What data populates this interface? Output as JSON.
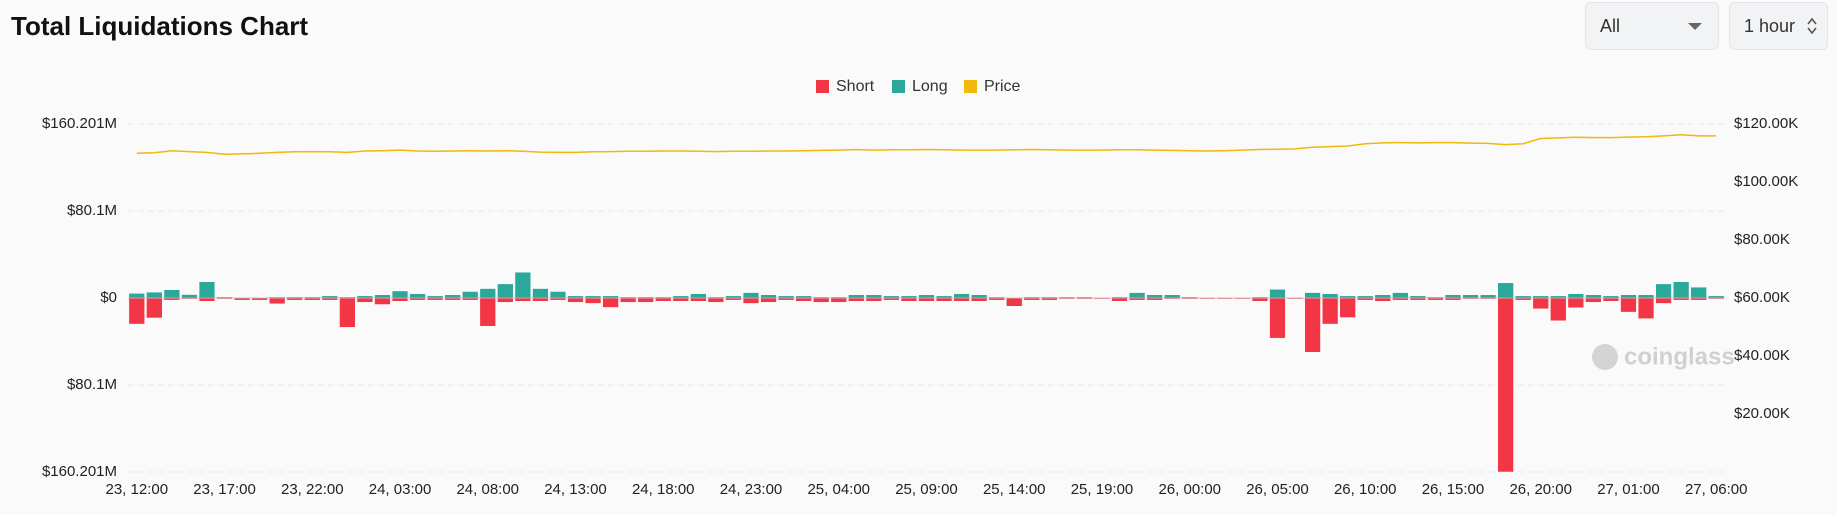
{
  "controls": {
    "coin": "All",
    "interval": "1 hour"
  },
  "chart_data": {
    "type": "bar",
    "title": "Total Liquidations Chart",
    "watermark": "coinglass",
    "categories": [
      "23, 12:00",
      null,
      null,
      null,
      null,
      "23, 17:00",
      null,
      null,
      null,
      null,
      "23, 22:00",
      null,
      null,
      null,
      null,
      "24, 03:00",
      null,
      null,
      null,
      null,
      "24, 08:00",
      null,
      null,
      null,
      null,
      "24, 13:00",
      null,
      null,
      null,
      null,
      "24, 18:00",
      null,
      null,
      null,
      null,
      "24, 23:00",
      null,
      null,
      null,
      null,
      "25, 04:00",
      null,
      null,
      null,
      null,
      "25, 09:00",
      null,
      null,
      null,
      null,
      "25, 14:00",
      null,
      null,
      null,
      null,
      "25, 19:00",
      null,
      null,
      null,
      null,
      "26, 00:00",
      null,
      null,
      null,
      null,
      "26, 05:00",
      null,
      null,
      null,
      null,
      "26, 10:00",
      null,
      null,
      null,
      null,
      "26, 15:00",
      null,
      null,
      null,
      null,
      "26, 20:00",
      null,
      null,
      null,
      null,
      "27, 01:00",
      null,
      null,
      null,
      null,
      "27, 06:00"
    ],
    "series": [
      {
        "name": "Short",
        "color": "#f23645",
        "values": [
          -24000000,
          -18400000,
          -2000000,
          -1000000,
          -3000000,
          -1000000,
          -2000000,
          -2000000,
          -5400000,
          -2000000,
          -2000000,
          -2000000,
          -27000000,
          -4000000,
          -6000000,
          -3000000,
          -2000000,
          -2000000,
          -2000000,
          -2000000,
          -26000000,
          -4000000,
          -3000000,
          -3000000,
          -2000000,
          -4000000,
          -5000000,
          -8700000,
          -4000000,
          -4000000,
          -3000000,
          -3000000,
          -3000000,
          -4000000,
          -2000000,
          -5000000,
          -4000000,
          -2000000,
          -3000000,
          -4000000,
          -4000000,
          -3000000,
          -3000000,
          -2000000,
          -3000000,
          -3000000,
          -3000000,
          -3000000,
          -3000000,
          -2000000,
          -7600000,
          -2000000,
          -2000000,
          -1000000,
          -1000000,
          -1000000,
          -3000000,
          -2000000,
          -2000000,
          -1000000,
          -1000000,
          -1000000,
          -1000000,
          -1000000,
          -3000000,
          -37000000,
          -1000000,
          -50000000,
          -24000000,
          -18000000,
          -2000000,
          -3000000,
          -2000000,
          -2000000,
          -2000000,
          -2000000,
          -1000000,
          -1000000,
          -160200000,
          -2000000,
          -10000000,
          -21000000,
          -9000000,
          -4000000,
          -3000000,
          -13000000,
          -19000000,
          -5000000,
          -2000000,
          -2000000,
          -1000000
        ]
      },
      {
        "name": "Long",
        "color": "#2aa89a",
        "values": [
          4300000,
          5400000,
          7600000,
          3200000,
          15000000,
          1000000,
          500000,
          500000,
          1000000,
          1000000,
          1000000,
          2000000,
          1000000,
          2000000,
          3000000,
          6500000,
          4000000,
          2000000,
          3000000,
          6000000,
          8700000,
          13000000,
          23800000,
          8700000,
          6000000,
          2000000,
          2000000,
          2000000,
          1000000,
          1000000,
          1000000,
          2000000,
          4000000,
          1000000,
          2000000,
          5000000,
          3000000,
          2000000,
          2000000,
          1000000,
          1000000,
          3000000,
          3000000,
          2000000,
          2000000,
          3000000,
          2000000,
          4000000,
          3000000,
          1000000,
          500000,
          1000000,
          1000000,
          1000000,
          1000000,
          500000,
          1000000,
          5000000,
          3000000,
          3000000,
          1000000,
          500000,
          500000,
          500000,
          1000000,
          8000000,
          500000,
          5000000,
          4000000,
          2000000,
          2000000,
          3000000,
          5000000,
          2000000,
          1000000,
          3000000,
          3000000,
          3000000,
          14000000,
          2000000,
          2000000,
          2000000,
          4000000,
          3000000,
          2000000,
          3000000,
          3000000,
          13000000,
          15000000,
          10000000,
          2000000
        ]
      },
      {
        "name": "Price",
        "color": "#f0b90b",
        "axis": "y2",
        "type": "line",
        "values": [
          109900,
          110100,
          110800,
          110500,
          110200,
          109600,
          109700,
          109900,
          110200,
          110400,
          110500,
          110400,
          110200,
          110700,
          110800,
          111000,
          110700,
          110600,
          110700,
          110800,
          110700,
          110800,
          110600,
          110300,
          110200,
          110200,
          110400,
          110500,
          110600,
          110600,
          110700,
          110700,
          110600,
          110500,
          110600,
          110600,
          110700,
          110700,
          110800,
          110900,
          111000,
          111200,
          111000,
          111100,
          111100,
          111200,
          111100,
          111000,
          111000,
          111000,
          111100,
          111200,
          111100,
          111000,
          111000,
          111000,
          111100,
          111100,
          111000,
          110900,
          110800,
          110700,
          110800,
          111000,
          111200,
          111300,
          111400,
          112000,
          112200,
          112400,
          113200,
          113500,
          113600,
          113500,
          113600,
          113600,
          113400,
          113300,
          112900,
          113200,
          115000,
          115200,
          115400,
          115300,
          115300,
          115500,
          115600,
          115900,
          116300,
          115900,
          115900
        ]
      }
    ],
    "ylim": [
      -160201000,
      160201000
    ],
    "yticks": [
      {
        "value": 160201000,
        "label": "$160.201M"
      },
      {
        "value": 80100000,
        "label": "$80.1M"
      },
      {
        "value": 0,
        "label": "$0"
      },
      {
        "value": -80100000,
        "label": "$80.1M"
      },
      {
        "value": -160201000,
        "label": "$160.201M"
      }
    ],
    "y2lim": [
      0,
      120000
    ],
    "y2ticks": [
      {
        "value": 120000,
        "label": "$120.00K"
      },
      {
        "value": 100000,
        "label": "$100.00K"
      },
      {
        "value": 80000,
        "label": "$80.00K"
      },
      {
        "value": 60000,
        "label": "$60.00K"
      },
      {
        "value": 40000,
        "label": "$40.00K"
      },
      {
        "value": 20000,
        "label": "$20.00K"
      }
    ],
    "grid": true,
    "legend": "top"
  }
}
